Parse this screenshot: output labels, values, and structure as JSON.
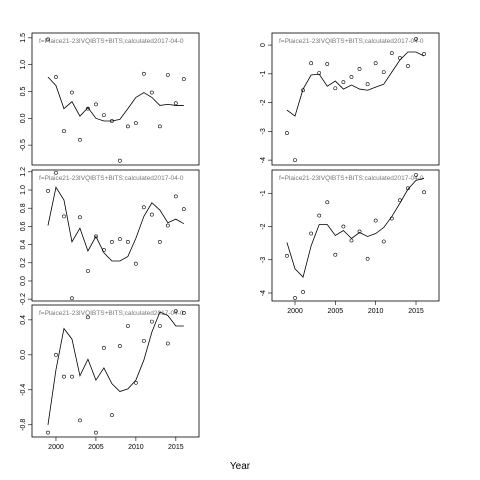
{
  "xlabel": "Year",
  "chart_data": [
    {
      "type": "scatter",
      "title": "f=Plaice21-23IVQIBTS+BITS;calculated2017-04-0",
      "x": [
        1999,
        2000,
        2001,
        2002,
        2003,
        2004,
        2005,
        2006,
        2007,
        2008,
        2009,
        2010,
        2011,
        2012,
        2013,
        2014,
        2015,
        2016
      ],
      "series": [
        {
          "mode": "points",
          "color": "#000000",
          "values": [
            1.47,
            0.77,
            -0.24,
            0.48,
            -0.4,
            0.18,
            0.26,
            0.06,
            -0.05,
            -0.79,
            -0.15,
            -0.09,
            0.83,
            0.48,
            -0.15,
            0.81,
            0.28,
            0.73
          ]
        },
        {
          "mode": "line",
          "color": "#000000",
          "values": [
            0.77,
            0.61,
            0.18,
            0.31,
            0.04,
            0.2,
            0.0,
            -0.05,
            -0.05,
            -0.02,
            0.18,
            0.39,
            0.48,
            0.39,
            0.24,
            0.26,
            0.24,
            0.24
          ]
        }
      ],
      "xlim": [
        1997,
        2017.9
      ],
      "ylim": [
        -0.87,
        1.59
      ],
      "yticks": [
        -0.5,
        {
          "value": 0,
          "label": "0.0"
        },
        0.5,
        {
          "value": 1,
          "label": "1.0"
        },
        1.5
      ]
    },
    {
      "type": "scatter",
      "title": "f=Plaice21-23IVQIBTS+BITS;calculated2017-04-0",
      "x": [
        1999,
        2000,
        2001,
        2002,
        2003,
        2004,
        2005,
        2006,
        2007,
        2008,
        2009,
        2010,
        2011,
        2012,
        2013,
        2014,
        2015,
        2016
      ],
      "series": [
        {
          "mode": "points",
          "color": "#000000",
          "values": [
            0.99,
            1.19,
            0.71,
            -0.19,
            0.7,
            0.11,
            0.49,
            0.34,
            0.43,
            0.46,
            0.43,
            0.19,
            0.81,
            0.73,
            0.43,
            0.61,
            0.93,
            0.79
          ]
        },
        {
          "mode": "line",
          "color": "#000000",
          "values": [
            0.61,
            1.03,
            0.89,
            0.43,
            0.58,
            0.33,
            0.49,
            0.31,
            0.22,
            0.22,
            0.27,
            0.47,
            0.71,
            0.86,
            0.78,
            0.64,
            0.68,
            0.63
          ]
        }
      ],
      "xlim": [
        1997,
        2017.9
      ],
      "ylim": [
        -0.22,
        1.22
      ],
      "yticks": [
        -0.2,
        {
          "value": 0,
          "label": "0.0"
        },
        0.2,
        0.4,
        0.6,
        0.8,
        {
          "value": 1,
          "label": "1.0"
        },
        1.2
      ]
    },
    {
      "type": "scatter",
      "title": "f=Plaice21-23IVQIBTS+BITS;calculated2017-04-0",
      "x": [
        1999,
        2000,
        2001,
        2002,
        2003,
        2004,
        2005,
        2006,
        2007,
        2008,
        2009,
        2010,
        2011,
        2012,
        2013,
        2014,
        2015,
        2016
      ],
      "series": [
        {
          "mode": "points",
          "color": "#000000",
          "values": [
            -0.89,
            0.0,
            -0.25,
            -0.25,
            -0.75,
            0.43,
            -0.89,
            0.08,
            -0.69,
            0.1,
            0.33,
            -0.32,
            0.16,
            0.38,
            0.33,
            0.13,
            0.5,
            0.48
          ]
        },
        {
          "mode": "line",
          "color": "#000000",
          "values": [
            -0.8,
            -0.17,
            0.3,
            0.18,
            -0.24,
            -0.05,
            -0.29,
            -0.15,
            -0.33,
            -0.42,
            -0.39,
            -0.29,
            -0.06,
            0.26,
            0.49,
            0.45,
            0.33,
            0.33
          ]
        }
      ],
      "xlim": [
        1997,
        2017.9
      ],
      "ylim": [
        -0.94,
        0.57
      ],
      "xticks": [
        2000,
        2005,
        2010,
        2015
      ],
      "yticks": [
        -0.8,
        -0.4,
        {
          "value": 0,
          "label": "0.0"
        },
        0.4
      ]
    },
    {
      "type": "scatter",
      "title": "f=Plaice21-23IVQIBTS+BITS;calculated2017-04-0",
      "x": [
        1999,
        2000,
        2001,
        2002,
        2003,
        2004,
        2005,
        2006,
        2007,
        2008,
        2009,
        2010,
        2011,
        2012,
        2013,
        2014,
        2015,
        2016
      ],
      "series": [
        {
          "mode": "points",
          "color": "#000000",
          "values": [
            -3.06,
            -4.0,
            -1.57,
            -0.63,
            -0.97,
            -0.66,
            -1.5,
            -1.29,
            -1.11,
            -0.83,
            -1.36,
            -0.63,
            -0.94,
            -0.28,
            -0.45,
            -0.73,
            0.21,
            -0.31
          ]
        },
        {
          "mode": "line",
          "color": "#000000",
          "values": [
            -2.26,
            -2.47,
            -1.53,
            -1.04,
            -1.01,
            -1.43,
            -1.25,
            -1.53,
            -1.39,
            -1.53,
            -1.57,
            -1.46,
            -1.36,
            -0.94,
            -0.52,
            -0.24,
            -0.24,
            -0.38
          ]
        }
      ],
      "xlim": [
        1997.15,
        2017.85
      ],
      "ylim": [
        -4.17,
        0.42
      ],
      "yticks": [
        -4,
        -3,
        -2,
        -1,
        0
      ]
    },
    {
      "type": "scatter",
      "title": "f=Plaice21-23IVQIBTS+BITS;calculated2017-04-0",
      "x": [
        1999,
        2000,
        2001,
        2002,
        2003,
        2004,
        2005,
        2006,
        2007,
        2008,
        2009,
        2010,
        2011,
        2012,
        2013,
        2014,
        2015,
        2016
      ],
      "series": [
        {
          "mode": "points",
          "color": "#000000",
          "values": [
            -2.88,
            -4.15,
            -3.97,
            -2.21,
            -1.67,
            -1.27,
            -2.85,
            -2.0,
            -2.42,
            -2.15,
            -2.97,
            -1.82,
            -2.45,
            -1.76,
            -1.21,
            -0.85,
            -0.45,
            -0.97
          ]
        },
        {
          "mode": "line",
          "color": "#000000",
          "values": [
            -2.48,
            -3.27,
            -3.52,
            -2.58,
            -1.94,
            -1.94,
            -2.27,
            -2.12,
            -2.36,
            -2.18,
            -2.3,
            -2.21,
            -2.03,
            -1.7,
            -1.3,
            -0.88,
            -0.61,
            -0.55
          ]
        }
      ],
      "xlim": [
        1997.15,
        2017.85
      ],
      "ylim": [
        -4.24,
        -0.3
      ],
      "xticks": [
        2000,
        2005,
        2010,
        2015
      ],
      "yticks": [
        -4,
        -3,
        -2,
        -1
      ]
    }
  ]
}
